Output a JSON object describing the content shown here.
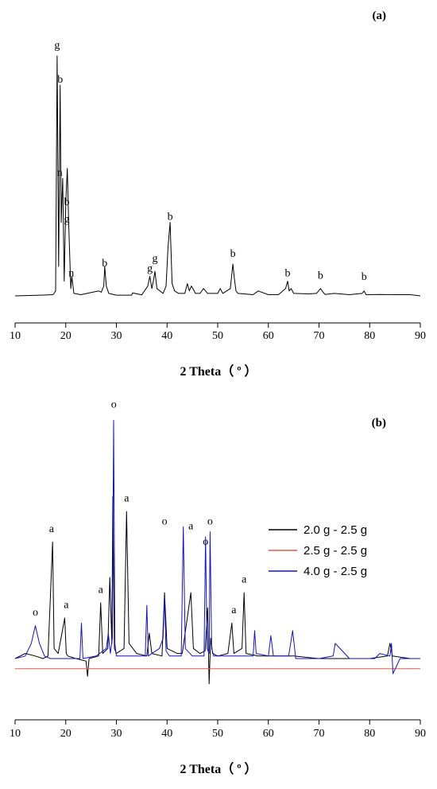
{
  "chart_data": [
    {
      "type": "line",
      "panel_label": "(a)",
      "xlabel": "2 Theta（ º ）",
      "ylabel": "",
      "xlim": [
        10,
        90
      ],
      "xticks": [
        10,
        20,
        30,
        40,
        50,
        60,
        70,
        80,
        90
      ],
      "ylim": [
        0,
        100
      ],
      "grid": false,
      "legend": null,
      "series": [
        {
          "color": "#000000",
          "x": [
            10,
            15,
            17.5,
            18,
            18.3,
            18.6,
            18.9,
            19.1,
            19.4,
            19.7,
            20.0,
            20.3,
            20.6,
            21.0,
            21.2,
            21.6,
            23,
            26.5,
            27,
            27.5,
            27.7,
            28.0,
            28.5,
            30,
            33,
            33.2,
            35,
            36.2,
            36.6,
            37.0,
            37.3,
            37.6,
            38,
            39.2,
            39.8,
            40.2,
            40.6,
            41.0,
            41.5,
            42.3,
            43.5,
            44.0,
            44.4,
            44.8,
            45.1,
            45.6,
            46.5,
            47.2,
            48,
            50,
            50.5,
            51,
            52.5,
            53.0,
            53.3,
            53.6,
            54,
            57,
            58,
            60,
            62,
            63.4,
            63.8,
            64.1,
            64.5,
            65,
            68,
            69.5,
            70.3,
            70.8,
            71.2,
            73,
            76,
            78.5,
            78.9,
            79.3,
            82,
            85,
            88,
            90
          ],
          "y": [
            0,
            0.3,
            0.5,
            2,
            98,
            12,
            86,
            30,
            48,
            6,
            38,
            52,
            28,
            3,
            8,
            1,
            0.5,
            2,
            1.5,
            4,
            12,
            4,
            1,
            0.3,
            0.3,
            1.2,
            0.4,
            4,
            8,
            3,
            6,
            10,
            3,
            1,
            4,
            20,
            30,
            5,
            2,
            1,
            1,
            5,
            2,
            4,
            3,
            1,
            1,
            3,
            1,
            1,
            3,
            1,
            3,
            13,
            7,
            2,
            1,
            0.5,
            2,
            0.5,
            0.5,
            3,
            6,
            2,
            3,
            1,
            0.8,
            1,
            3,
            1.5,
            0.6,
            1,
            0.5,
            1,
            2,
            0.5,
            0.6,
            0.5,
            0.5,
            0
          ]
        }
      ],
      "annotations": [
        {
          "text": "g",
          "x": 18.3,
          "y": 100
        },
        {
          "text": "b",
          "x": 18.9,
          "y": 86
        },
        {
          "text": "n",
          "x": 18.8,
          "y": 48
        },
        {
          "text": "b",
          "x": 20.2,
          "y": 36
        },
        {
          "text": "g",
          "x": 20.2,
          "y": 29
        },
        {
          "text": "n",
          "x": 21.1,
          "y": 7
        },
        {
          "text": "b",
          "x": 27.7,
          "y": 11
        },
        {
          "text": "g",
          "x": 36.6,
          "y": 9
        },
        {
          "text": "g",
          "x": 37.6,
          "y": 13
        },
        {
          "text": "b",
          "x": 40.6,
          "y": 30
        },
        {
          "text": "b",
          "x": 53.0,
          "y": 15
        },
        {
          "text": "b",
          "x": 63.8,
          "y": 7
        },
        {
          "text": "b",
          "x": 70.3,
          "y": 6
        },
        {
          "text": "b",
          "x": 78.9,
          "y": 5.5
        }
      ]
    },
    {
      "type": "line",
      "panel_label": "(b)",
      "xlabel": "2 Theta（ º ）",
      "ylabel": "",
      "xlim": [
        10,
        90
      ],
      "xticks": [
        10,
        20,
        30,
        40,
        50,
        60,
        70,
        80,
        90
      ],
      "ylim": [
        -12,
        100
      ],
      "grid": false,
      "legend": "upper-right",
      "series": [
        {
          "name": "2.0 g - 2.5 g",
          "color": "#000000",
          "x": [
            10,
            12,
            14,
            15.5,
            16.5,
            17.2,
            17.4,
            17.7,
            18.5,
            19.8,
            20.1,
            20.4,
            22,
            24,
            24.3,
            24.6,
            26.5,
            26.9,
            27.3,
            28.3,
            28.7,
            29.1,
            29.3,
            29.6,
            30,
            31.5,
            32.0,
            32.5,
            34,
            36,
            36.5,
            37,
            39,
            39.5,
            40,
            42,
            43,
            44.7,
            45.2,
            46.5,
            47.5,
            48.0,
            48.3,
            48.6,
            49,
            50,
            52,
            52.8,
            53.2,
            54.8,
            55.2,
            55.6,
            58,
            60,
            65,
            70,
            75,
            80,
            83.5,
            84,
            84.5,
            88,
            90
          ],
          "y": [
            4,
            6,
            5,
            4,
            5,
            40,
            50,
            8,
            6,
            20,
            6,
            5,
            4,
            3,
            -3,
            4,
            5,
            26,
            6,
            8,
            36,
            10,
            68,
            8,
            6,
            8,
            62,
            10,
            6,
            5,
            14,
            6,
            5,
            30,
            8,
            6,
            6,
            30,
            8,
            6,
            7,
            24,
            -6,
            12,
            6,
            5,
            6,
            18,
            6,
            8,
            30,
            6,
            5,
            5,
            5,
            4,
            4,
            4,
            5,
            10,
            5,
            4,
            4
          ]
        },
        {
          "name": "2.5 g - 2.5 g",
          "color": "#e05a4a",
          "x": [
            10,
            90
          ],
          "y": [
            0,
            0
          ]
        },
        {
          "name": "4.0 g - 2.5 g",
          "color": "#1212d6",
          "x": [
            10,
            12,
            13.2,
            14.0,
            14.8,
            15.8,
            17,
            20,
            22.8,
            23.1,
            23.4,
            26,
            28,
            28.4,
            28.8,
            29.2,
            29.45,
            29.7,
            30,
            31,
            33,
            35.7,
            36.0,
            36.3,
            37,
            38.5,
            39.2,
            39.5,
            39.8,
            40.5,
            42,
            42.8,
            43.2,
            43.6,
            45,
            47.3,
            47.6,
            47.9,
            48.3,
            48.5,
            48.8,
            49.2,
            50,
            52,
            55,
            57,
            57.3,
            57.6,
            60,
            60.5,
            61,
            64,
            64.8,
            65.4,
            70,
            72.8,
            73.2,
            76,
            79,
            81,
            82,
            84,
            84.3,
            84.6,
            86,
            88,
            90
          ],
          "y": [
            4,
            5,
            10,
            17,
            10,
            5,
            4,
            4,
            4,
            18,
            4,
            5,
            8,
            14,
            6,
            12,
            98,
            10,
            5,
            5,
            5,
            5,
            25,
            5,
            6,
            8,
            12,
            28,
            7,
            5,
            5,
            5,
            56,
            8,
            5,
            5,
            52,
            8,
            6,
            54,
            8,
            5,
            5,
            5,
            5,
            5,
            15,
            6,
            5,
            13,
            5,
            5,
            15,
            4,
            4,
            5,
            10,
            4,
            4,
            4,
            6,
            5,
            10,
            -2,
            4,
            4,
            4
          ]
        }
      ],
      "annotations": [
        {
          "text": "o",
          "x": 14.0,
          "y": 20
        },
        {
          "text": "a",
          "x": 17.2,
          "y": 53
        },
        {
          "text": "a",
          "x": 20.1,
          "y": 23
        },
        {
          "text": "a",
          "x": 26.9,
          "y": 29
        },
        {
          "text": "o",
          "x": 29.5,
          "y": 102
        },
        {
          "text": "a",
          "x": 32.0,
          "y": 65
        },
        {
          "text": "o",
          "x": 39.5,
          "y": 56
        },
        {
          "text": "a",
          "x": 44.7,
          "y": 54
        },
        {
          "text": "o",
          "x": 47.6,
          "y": 48
        },
        {
          "text": "o",
          "x": 48.5,
          "y": 56
        },
        {
          "text": "a",
          "x": 53.2,
          "y": 21
        },
        {
          "text": "a",
          "x": 55.2,
          "y": 33
        }
      ]
    }
  ]
}
